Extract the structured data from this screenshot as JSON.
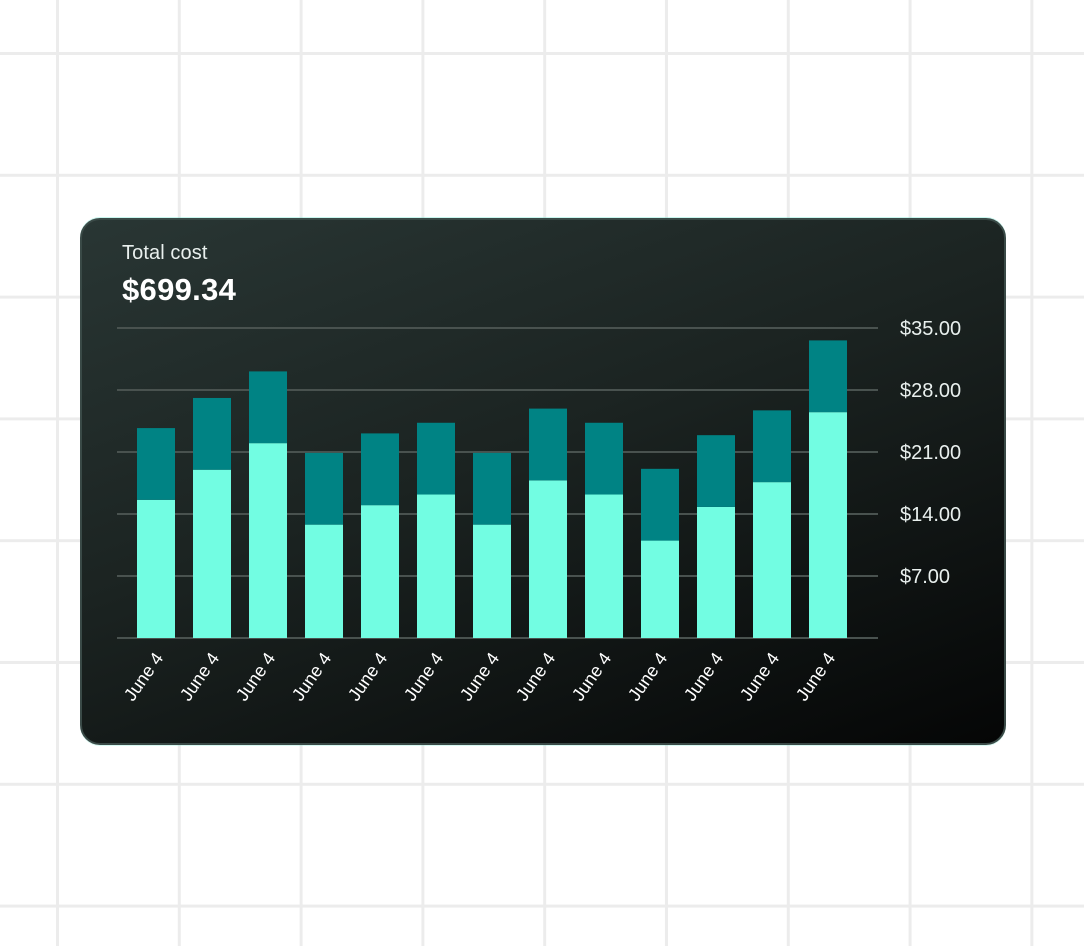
{
  "card": {
    "label": "Total cost",
    "value": "$699.34"
  },
  "colors": {
    "bar_bottom": "#72fde2",
    "bar_top": "#008384",
    "grid": "#49524f"
  },
  "chart_data": {
    "type": "bar",
    "stacked": true,
    "categories": [
      "June 4",
      "June 4",
      "June 4",
      "June 4",
      "June 4",
      "June 4",
      "June 4",
      "June 4",
      "June 4",
      "June 4",
      "June 4",
      "June 4",
      "June 4"
    ],
    "series": [
      {
        "values": [
          15.6,
          19.0,
          22.0,
          12.8,
          15.0,
          16.2,
          12.8,
          17.8,
          16.2,
          11.0,
          14.8,
          17.6,
          25.5
        ]
      },
      {
        "values": [
          8.1,
          8.1,
          8.1,
          8.1,
          8.1,
          8.1,
          8.1,
          8.1,
          8.1,
          8.1,
          8.1,
          8.1,
          8.1
        ]
      }
    ],
    "yticks": [
      7,
      14,
      21,
      28,
      35
    ],
    "ytick_labels": [
      "$7.00",
      "$14.00",
      "$21.00",
      "$28.00",
      "$35.00"
    ],
    "ylim": [
      0,
      35
    ],
    "grid": true,
    "y_axis_position": "right"
  }
}
